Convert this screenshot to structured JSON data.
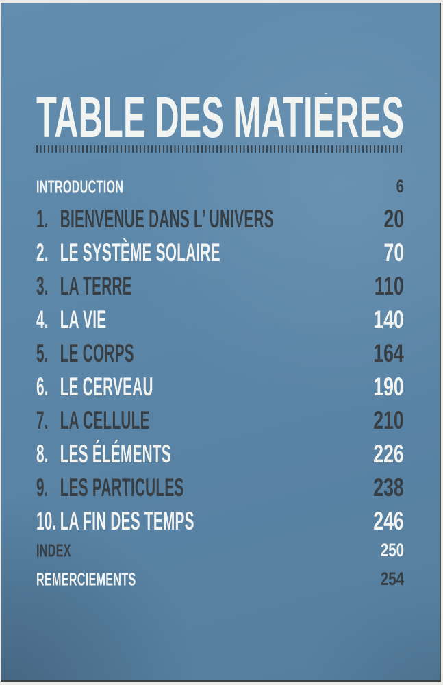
{
  "page": {
    "title": "TABLE DES MATIÈRES"
  },
  "toc": {
    "rows": [
      {
        "num": "",
        "title": "INTRODUCTION",
        "page": "6",
        "size": "small",
        "title_tone": "light",
        "page_tone": "dark"
      },
      {
        "num": "1.",
        "title": "BIENVENUE DANS L’ UNIVERS",
        "page": "20",
        "size": "large",
        "title_tone": "dark",
        "page_tone": "dark"
      },
      {
        "num": "2.",
        "title": "LE SYSTÈME SOLAIRE",
        "page": "70",
        "size": "large",
        "title_tone": "light",
        "page_tone": "light"
      },
      {
        "num": "3.",
        "title": "LA TERRE",
        "page": "110",
        "size": "large",
        "title_tone": "dark",
        "page_tone": "dark"
      },
      {
        "num": "4.",
        "title": "LA VIE",
        "page": "140",
        "size": "large",
        "title_tone": "light",
        "page_tone": "light"
      },
      {
        "num": "5.",
        "title": "LE CORPS",
        "page": "164",
        "size": "large",
        "title_tone": "dark",
        "page_tone": "dark"
      },
      {
        "num": "6.",
        "title": "LE CERVEAU",
        "page": "190",
        "size": "large",
        "title_tone": "light",
        "page_tone": "light"
      },
      {
        "num": "7.",
        "title": "LA CELLULE",
        "page": "210",
        "size": "large",
        "title_tone": "dark",
        "page_tone": "dark"
      },
      {
        "num": "8.",
        "title": "LES ÉLÉMENTS",
        "page": "226",
        "size": "large",
        "title_tone": "light",
        "page_tone": "light"
      },
      {
        "num": "9.",
        "title": "LES PARTICULES",
        "page": "238",
        "size": "large",
        "title_tone": "dark",
        "page_tone": "dark"
      },
      {
        "num": "10.",
        "title": "LA FIN DES TEMPS",
        "page": "246",
        "size": "large",
        "title_tone": "light",
        "page_tone": "light"
      },
      {
        "num": "",
        "title": "INDEX",
        "page": "250",
        "size": "small",
        "title_tone": "dark",
        "page_tone": "light"
      },
      {
        "num": "",
        "title": "REMERCIEMENTS",
        "page": "254",
        "size": "small",
        "title_tone": "light",
        "page_tone": "dark"
      }
    ]
  },
  "colors": {
    "paper_blue": "#5b86a8",
    "text_dark": "#373e44",
    "text_light": "#f2f4f1"
  }
}
